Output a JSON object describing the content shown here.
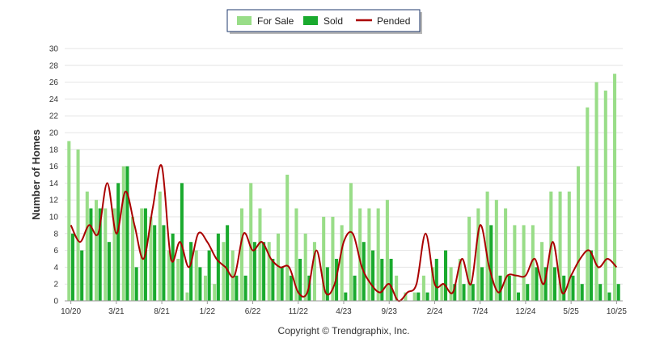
{
  "chart_data": {
    "type": "bar",
    "ylabel": "Number of Homes",
    "ylim": [
      0,
      30
    ],
    "yticks": [
      0,
      2,
      4,
      6,
      8,
      10,
      12,
      14,
      16,
      18,
      20,
      22,
      24,
      26,
      28,
      30
    ],
    "x_tick_labels": [
      {
        "index": 0,
        "label": "10/20"
      },
      {
        "index": 5,
        "label": "3/21"
      },
      {
        "index": 10,
        "label": "8/21"
      },
      {
        "index": 15,
        "label": "1/22"
      },
      {
        "index": 20,
        "label": "6/22"
      },
      {
        "index": 25,
        "label": "11/22"
      },
      {
        "index": 30,
        "label": "4/23"
      },
      {
        "index": 35,
        "label": "9/23"
      },
      {
        "index": 40,
        "label": "2/24"
      },
      {
        "index": 45,
        "label": "7/24"
      },
      {
        "index": 50,
        "label": "12/24"
      },
      {
        "index": 55,
        "label": "5/25"
      },
      {
        "index": 60,
        "label": "10/25"
      }
    ],
    "grid": true,
    "legend_position": "top-center",
    "series": [
      {
        "name": "For Sale",
        "kind": "bar",
        "color": "#99dd88",
        "values": [
          19,
          18,
          13,
          12,
          11,
          11,
          16,
          10,
          11,
          10,
          13,
          6,
          5,
          1,
          6,
          3,
          2,
          7,
          6,
          11,
          14,
          11,
          7,
          8,
          15,
          11,
          8,
          7,
          10,
          10,
          9,
          14,
          11,
          11,
          11,
          12,
          3,
          1,
          1,
          3,
          4,
          2,
          4,
          5,
          10,
          11,
          13,
          12,
          11,
          9,
          9,
          9,
          7,
          13,
          13,
          13,
          16,
          23,
          26,
          25,
          27
        ]
      },
      {
        "name": "Sold",
        "kind": "bar",
        "color": "#1aaa2e",
        "values": [
          8,
          6,
          11,
          11,
          7,
          14,
          16,
          4,
          11,
          9,
          9,
          8,
          14,
          7,
          4,
          6,
          8,
          9,
          3,
          3,
          7,
          7,
          5,
          4,
          3,
          5,
          3,
          0,
          4,
          5,
          1,
          3,
          7,
          6,
          5,
          5,
          0,
          0,
          1,
          1,
          5,
          6,
          2,
          2,
          2,
          4,
          9,
          3,
          3,
          1,
          2,
          4,
          4,
          4,
          3,
          3,
          2,
          6,
          2,
          1,
          2
        ]
      },
      {
        "name": "Pended",
        "kind": "line",
        "color": "#aa0000",
        "values": [
          9,
          7,
          9,
          8,
          14,
          8,
          13,
          9,
          5,
          11,
          16,
          5,
          7,
          4,
          8,
          7,
          5,
          4,
          3,
          8,
          6,
          7,
          5,
          4,
          4,
          1,
          1,
          6,
          1,
          2,
          7,
          8,
          4,
          2,
          1,
          2,
          0,
          1,
          2,
          8,
          2,
          2,
          1,
          5,
          2,
          9,
          4,
          1,
          3,
          3,
          3,
          5,
          2,
          7,
          1,
          3,
          5,
          6,
          4,
          5,
          4
        ]
      }
    ]
  },
  "credit": "Copyright © Trendgraphix, Inc."
}
